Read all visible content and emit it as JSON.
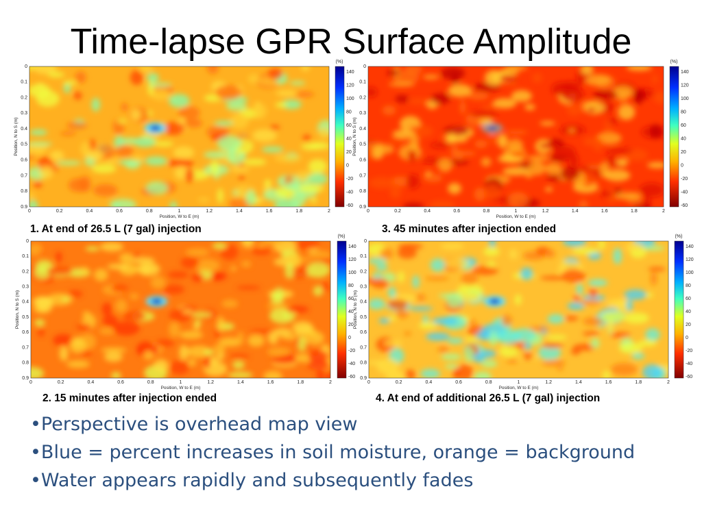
{
  "title": "Time-lapse GPR Surface Amplitude",
  "x_axis_label": "Position, W to E (m)",
  "y_axis_label": "Position, N to S (m)",
  "x_ticks": [
    "0",
    "0.2",
    "0.4",
    "0.6",
    "0.8",
    "1",
    "1.2",
    "1.4",
    "1.6",
    "1.8",
    "2"
  ],
  "y_ticks": [
    "0",
    "0.1",
    "0.2",
    "0.3",
    "0.4",
    "0.5",
    "0.6",
    "0.7",
    "0.8",
    "0.9"
  ],
  "colorbar_unit": "(%)",
  "colorbar_ticks": [
    "140",
    "120",
    "100",
    "80",
    "60",
    "40",
    "20",
    "0",
    "-20",
    "-40",
    "-60"
  ],
  "panels": [
    {
      "caption": "1.  At end of 26.5 L (7 gal) injection"
    },
    {
      "caption": "2.  15 minutes after injection ended"
    },
    {
      "caption": "3.  45 minutes after injection ended"
    },
    {
      "caption": "4.  At end of additional 26.5 L (7 gal) injection"
    }
  ],
  "bullets": [
    "•Perspective is overhead map view",
    "•Blue = percent increases in soil moisture, orange = background",
    "•Water appears rapidly and subsequently fades"
  ]
}
